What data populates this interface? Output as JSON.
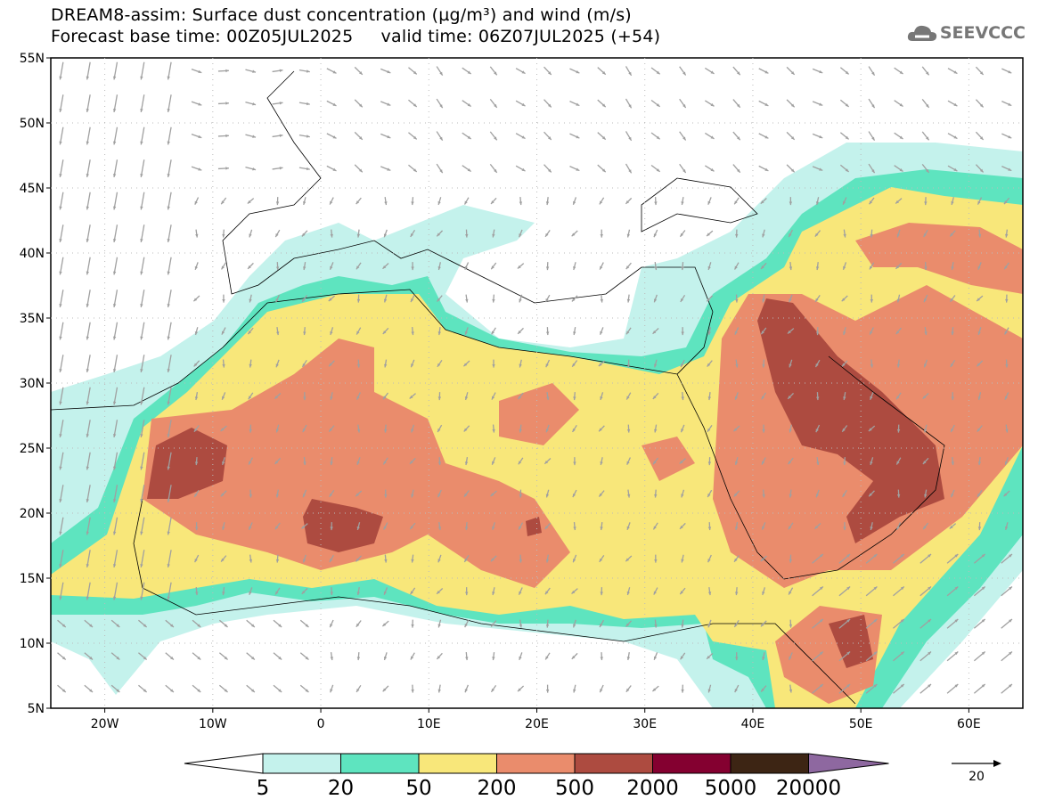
{
  "header": {
    "title": "DREAM8-assim: Surface dust concentration (µg/m³) and wind (m/s)",
    "subtitle": "Forecast base time: 00Z05JUL2025     valid time: 06Z07JUL2025 (+54)",
    "logo": "SEEVCCC"
  },
  "map": {
    "lat_labels": [
      "55N",
      "50N",
      "45N",
      "40N",
      "35N",
      "30N",
      "25N",
      "20N",
      "15N",
      "10N",
      "5N"
    ],
    "lon_labels": [
      "20W",
      "10W",
      "0",
      "10E",
      "20E",
      "30E",
      "40E",
      "50E",
      "60E"
    ],
    "extent": {
      "lon": [
        -25,
        65
      ],
      "lat": [
        5,
        55
      ]
    }
  },
  "colorbar": {
    "levels": [
      "5",
      "20",
      "50",
      "200",
      "500",
      "2000",
      "5000",
      "20000"
    ],
    "colors": [
      "#c4f2ec",
      "#5ee4bf",
      "#f8e77a",
      "#ea8c6c",
      "#ad4b40",
      "#840030",
      "#3d2514",
      "#8e68a0"
    ]
  },
  "wind_reference": {
    "label": "20",
    "units": "m/s"
  }
}
